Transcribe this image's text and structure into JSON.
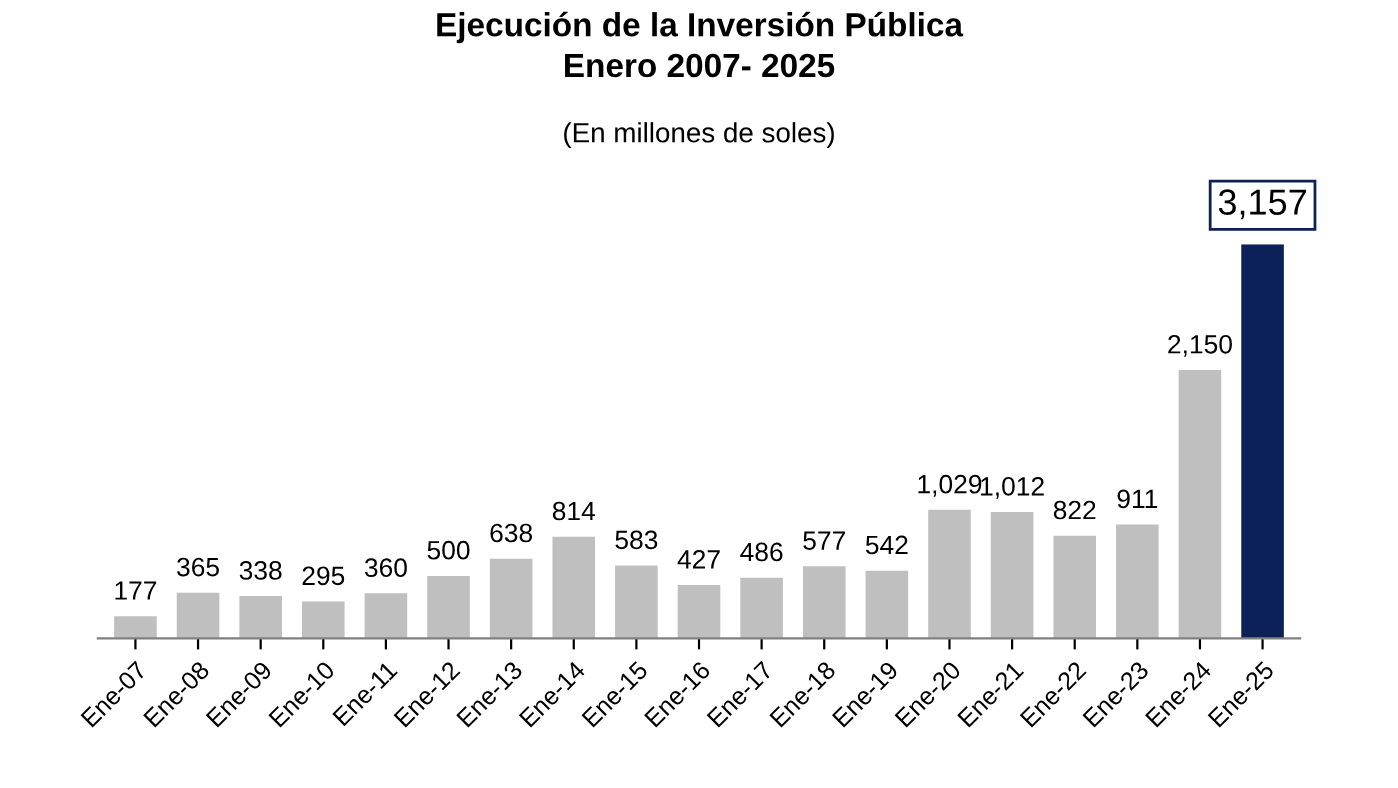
{
  "chart_data": {
    "type": "bar",
    "title": "Ejecución de la Inversión Pública\nEnero 2007- 2025",
    "subtitle": "(En millones de soles)",
    "categories": [
      "Ene-07",
      "Ene-08",
      "Ene-09",
      "Ene-10",
      "Ene-11",
      "Ene-12",
      "Ene-13",
      "Ene-14",
      "Ene-15",
      "Ene-16",
      "Ene-17",
      "Ene-18",
      "Ene-19",
      "Ene-20",
      "Ene-21",
      "Ene-22",
      "Ene-23",
      "Ene-24",
      "Ene-25"
    ],
    "values": [
      177,
      365,
      338,
      295,
      360,
      500,
      638,
      814,
      583,
      427,
      486,
      577,
      542,
      1029,
      1012,
      822,
      911,
      2150,
      3157
    ],
    "value_labels": [
      "177",
      "365",
      "338",
      "295",
      "360",
      "500",
      "638",
      "814",
      "583",
      "427",
      "486",
      "577",
      "542",
      "1,029",
      "1,012",
      "822",
      "911",
      "2,150",
      "3,157"
    ],
    "colors": [
      "#bfbfbf",
      "#bfbfbf",
      "#bfbfbf",
      "#bfbfbf",
      "#bfbfbf",
      "#bfbfbf",
      "#bfbfbf",
      "#bfbfbf",
      "#bfbfbf",
      "#bfbfbf",
      "#bfbfbf",
      "#bfbfbf",
      "#bfbfbf",
      "#bfbfbf",
      "#bfbfbf",
      "#bfbfbf",
      "#bfbfbf",
      "#bfbfbf",
      "#0b2157"
    ],
    "grid": false,
    "legend": false
  }
}
